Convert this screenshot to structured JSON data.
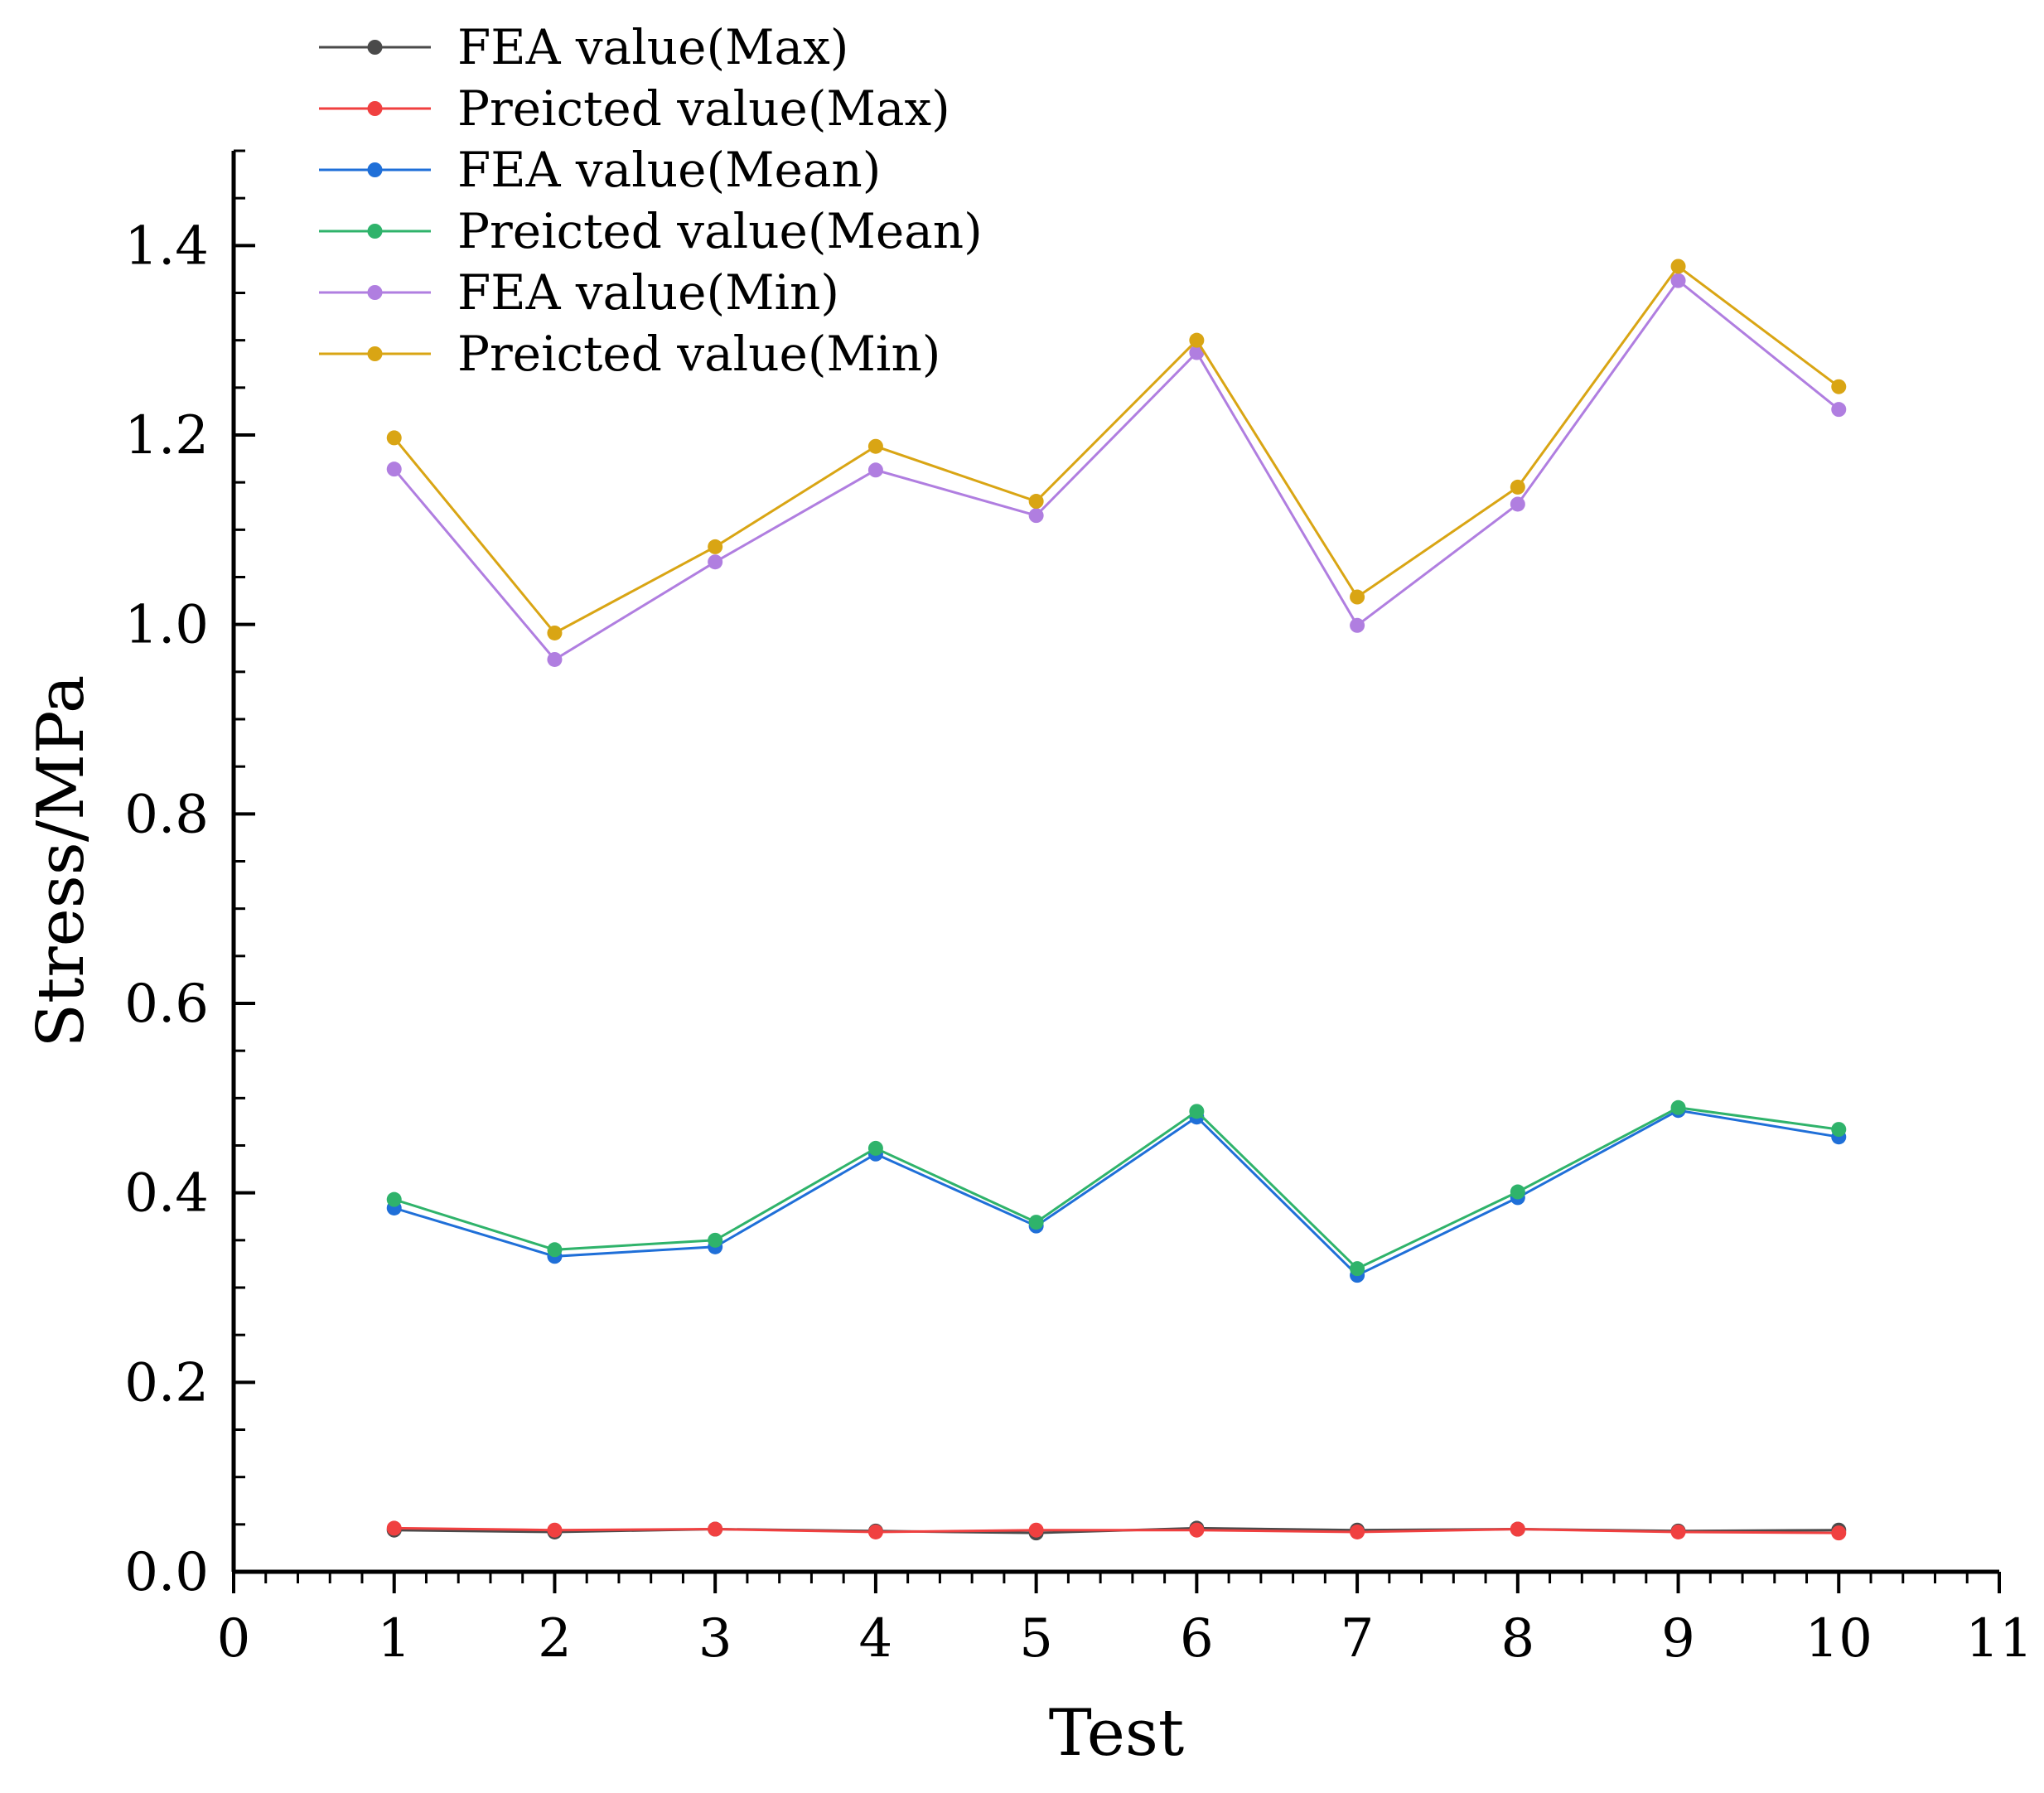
{
  "chart_data": {
    "type": "line",
    "title": "",
    "xlabel": "Test",
    "ylabel": "Stress/MPa",
    "xlim": [
      0,
      11
    ],
    "ylim": [
      0,
      1.5
    ],
    "xticks": [
      0,
      1,
      2,
      3,
      4,
      5,
      6,
      7,
      8,
      9,
      10,
      11
    ],
    "xtick_labels": [
      "0",
      "1",
      "2",
      "3",
      "4",
      "5",
      "6",
      "7",
      "8",
      "9",
      "10",
      "11"
    ],
    "yticks": [
      0,
      0.2,
      0.4,
      0.6,
      0.8,
      1.0,
      1.2,
      1.4
    ],
    "ytick_labels": [
      "0.0",
      "0.2",
      "0.4",
      "0.6",
      "0.8",
      "1.0",
      "1.2",
      "1.4"
    ],
    "grid": false,
    "legend_position": "top-left",
    "x": [
      1,
      2,
      3,
      4,
      5,
      6,
      7,
      8,
      9,
      10
    ],
    "series": [
      {
        "name": "FEA value(Max)",
        "color": "#4a4a4a",
        "values": [
          0.044,
          0.042,
          0.045,
          0.043,
          0.041,
          0.046,
          0.044,
          0.045,
          0.043,
          0.044
        ]
      },
      {
        "name": "Preicted value(Max)",
        "color": "#f04040",
        "values": [
          0.046,
          0.044,
          0.045,
          0.042,
          0.044,
          0.044,
          0.042,
          0.045,
          0.042,
          0.041
        ]
      },
      {
        "name": "FEA value(Mean)",
        "color": "#1f6fd8",
        "values": [
          0.384,
          0.333,
          0.343,
          0.441,
          0.365,
          0.48,
          0.313,
          0.395,
          0.487,
          0.459
        ]
      },
      {
        "name": "Preicted value(Mean)",
        "color": "#2fb36b",
        "values": [
          0.393,
          0.34,
          0.35,
          0.447,
          0.369,
          0.486,
          0.32,
          0.401,
          0.49,
          0.467
        ]
      },
      {
        "name": "FEA value(Min)",
        "color": "#b07ee0",
        "values": [
          1.164,
          0.963,
          1.066,
          1.163,
          1.115,
          1.287,
          0.999,
          1.127,
          1.363,
          1.227
        ]
      },
      {
        "name": "Preicted value(Min)",
        "color": "#d9a514",
        "values": [
          1.197,
          0.991,
          1.082,
          1.188,
          1.13,
          1.3,
          1.029,
          1.145,
          1.378,
          1.251
        ]
      }
    ]
  }
}
